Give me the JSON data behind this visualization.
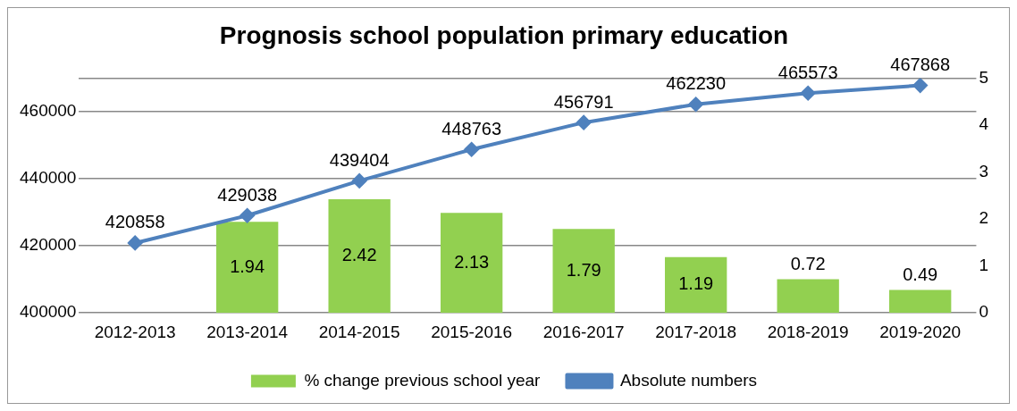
{
  "chart_data": {
    "type": "bar",
    "title": "Prognosis school population primary education",
    "categories": [
      "2012-2013",
      "2013-2014",
      "2014-2015",
      "2015-2016",
      "2016-2017",
      "2017-2018",
      "2018-2019",
      "2019-2020"
    ],
    "series": [
      {
        "name": "% change previous school year",
        "axis": "y2",
        "color": "#92d050",
        "values": [
          null,
          1.94,
          2.42,
          2.13,
          1.79,
          1.19,
          0.72,
          0.49
        ]
      },
      {
        "name": "Absolute numbers",
        "type": "line",
        "color": "#4f81bd",
        "marker": "diamond",
        "values": [
          420858,
          429038,
          439404,
          448763,
          456791,
          462230,
          465573,
          467868
        ]
      }
    ],
    "ylim": [
      400000,
      470000
    ],
    "yticks": [
      400000,
      420000,
      440000,
      460000,
      {
        "value": 470000,
        "label": null
      }
    ],
    "y2lim": [
      0,
      5
    ],
    "y2ticks": [
      0,
      1,
      2,
      3,
      4,
      5
    ],
    "grid": "y",
    "legend": "bottom",
    "data_labels": true
  }
}
